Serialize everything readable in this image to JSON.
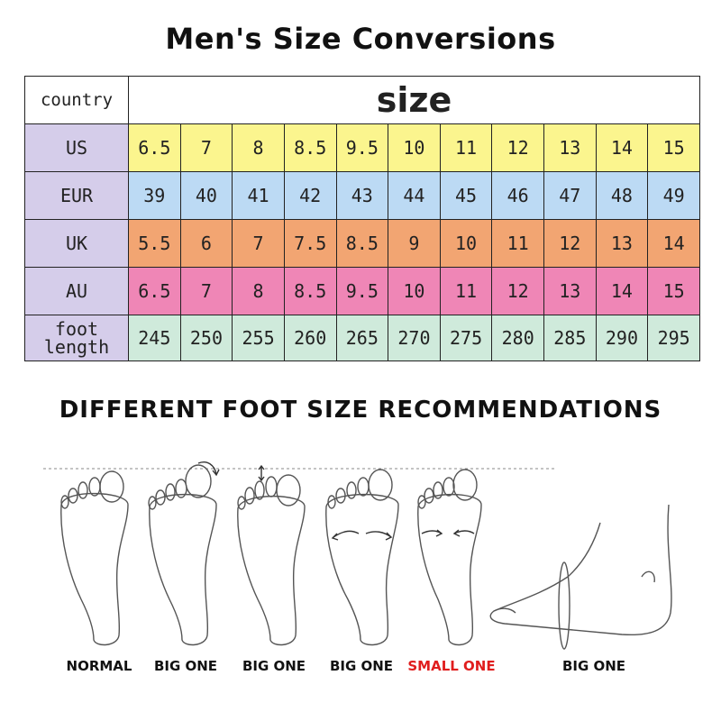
{
  "title": "Men's Size Conversions",
  "table": {
    "country_header": "country",
    "size_header": "size",
    "rows": [
      {
        "label": "US",
        "values": [
          "6.5",
          "7",
          "8",
          "8.5",
          "9.5",
          "10",
          "11",
          "12",
          "13",
          "14",
          "15"
        ]
      },
      {
        "label": "EUR",
        "values": [
          "39",
          "40",
          "41",
          "42",
          "43",
          "44",
          "45",
          "46",
          "47",
          "48",
          "49"
        ]
      },
      {
        "label": "UK",
        "values": [
          "5.5",
          "6",
          "7",
          "7.5",
          "8.5",
          "9",
          "10",
          "11",
          "12",
          "13",
          "14"
        ]
      },
      {
        "label": "AU",
        "values": [
          "6.5",
          "7",
          "8",
          "8.5",
          "9.5",
          "10",
          "11",
          "12",
          "13",
          "14",
          "15"
        ]
      },
      {
        "label_line1": "foot",
        "label_line2": "length",
        "values": [
          "245",
          "250",
          "255",
          "260",
          "265",
          "270",
          "275",
          "280",
          "285",
          "290",
          "295"
        ]
      }
    ],
    "row_colors": {
      "US": "#fbf58e",
      "EUR": "#bcdaf4",
      "UK": "#f2a572",
      "AU": "#ef86b6",
      "foot_length": "#cfeadb",
      "label_column": "#d5cdea"
    }
  },
  "recommendations": {
    "heading": "DIFFERENT FOOT SIZE RECOMMENDATIONS",
    "captions": [
      "NORMAL",
      "BIG ONE",
      "BIG ONE",
      "BIG ONE",
      "SMALL ONE",
      "BIG ONE"
    ],
    "highlight_color": "#e01d1d"
  }
}
